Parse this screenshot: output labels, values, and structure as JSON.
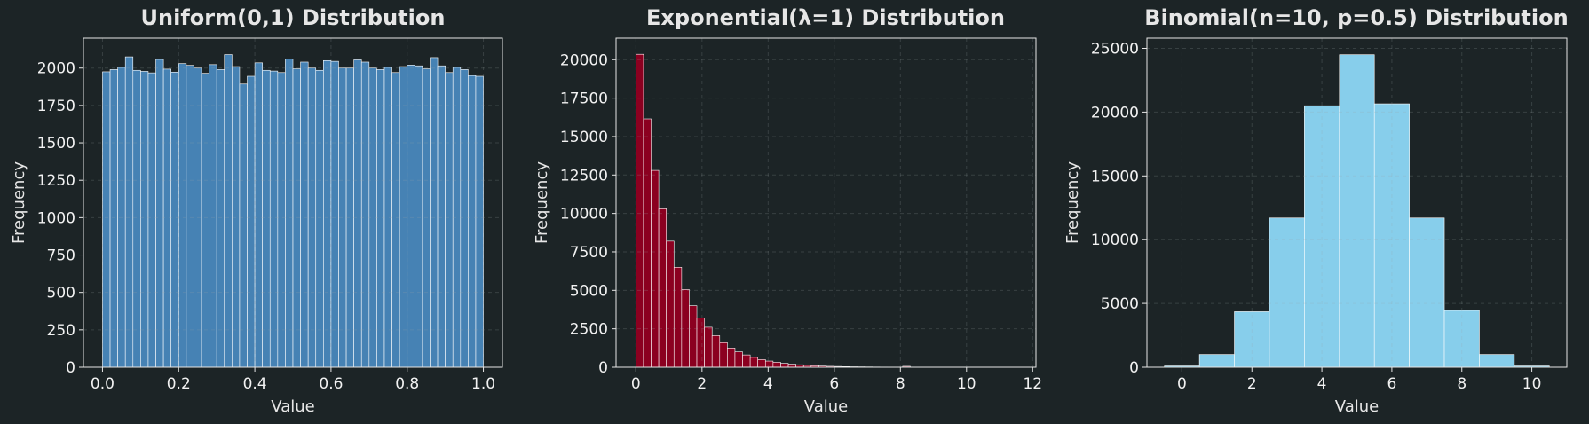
{
  "colors": {
    "background": "#1c2426",
    "axes_edge": "#e6e6e6",
    "text": "#e6e6e6",
    "bar_edge": "#ffffff"
  },
  "chart_data": [
    {
      "type": "bar",
      "title": "Uniform(0,1) Distribution",
      "xlabel": "Value",
      "ylabel": "Frequency",
      "xlim": [
        -0.05,
        1.05
      ],
      "ylim": [
        0,
        2200
      ],
      "xticks": [
        0.0,
        0.2,
        0.4,
        0.6,
        0.8,
        1.0
      ],
      "xtick_labels": [
        "0.0",
        "0.2",
        "0.4",
        "0.6",
        "0.8",
        "1.0"
      ],
      "yticks": [
        0,
        250,
        500,
        750,
        1000,
        1250,
        1500,
        1750,
        2000
      ],
      "ytick_labels": [
        "0",
        "250",
        "500",
        "750",
        "1000",
        "1250",
        "1500",
        "1750",
        "2000"
      ],
      "grid": true,
      "color": "#4682b4",
      "bin_edges_start": 0.0,
      "bin_width": 0.02,
      "values": [
        1975,
        1990,
        2005,
        2075,
        1985,
        1978,
        1968,
        2058,
        1993,
        1973,
        2030,
        2018,
        2000,
        1965,
        2023,
        1990,
        2090,
        2010,
        1893,
        1945,
        2035,
        1985,
        1980,
        1970,
        2060,
        1995,
        2040,
        2000,
        1985,
        2050,
        2045,
        2000,
        2000,
        2055,
        2040,
        2000,
        1990,
        2005,
        1970,
        2010,
        2020,
        2015,
        1995,
        2070,
        2015,
        1970,
        2005,
        1990,
        1950,
        1945
      ]
    },
    {
      "type": "bar",
      "title": "Exponential(λ=1) Distribution",
      "xlabel": "Value",
      "ylabel": "Frequency",
      "xlim": [
        -0.6,
        12.1
      ],
      "ylim": [
        0,
        21400
      ],
      "xticks": [
        0,
        2,
        4,
        6,
        8,
        10,
        12
      ],
      "xtick_labels": [
        "0",
        "2",
        "4",
        "6",
        "8",
        "10",
        "12"
      ],
      "yticks": [
        0,
        2500,
        5000,
        7500,
        10000,
        12500,
        15000,
        17500,
        20000
      ],
      "ytick_labels": [
        "0",
        "2500",
        "5000",
        "7500",
        "10000",
        "12500",
        "15000",
        "17500",
        "20000"
      ],
      "grid": true,
      "color": "#8b0020",
      "bin_edges_start": 0.0,
      "bin_width": 0.2305,
      "values": [
        20350,
        16150,
        12800,
        10300,
        8200,
        6500,
        5050,
        4000,
        3200,
        2600,
        2050,
        1600,
        1250,
        1000,
        800,
        640,
        500,
        400,
        320,
        250,
        200,
        160,
        120,
        100,
        80,
        60,
        50,
        40,
        30,
        25,
        20,
        15,
        12,
        10,
        5,
        60,
        5,
        3,
        2,
        2,
        2,
        2,
        2,
        1,
        1,
        1,
        1,
        1,
        1,
        1
      ]
    },
    {
      "type": "bar",
      "title": "Binomial(n=10, p=0.5) Distribution",
      "xlabel": "Value",
      "ylabel": "Frequency",
      "xlim": [
        -1.0,
        11.0
      ],
      "ylim": [
        0,
        25800
      ],
      "xticks": [
        0,
        2,
        4,
        6,
        8,
        10
      ],
      "xtick_labels": [
        "0",
        "2",
        "4",
        "6",
        "8",
        "10"
      ],
      "yticks": [
        0,
        5000,
        10000,
        15000,
        20000,
        25000
      ],
      "ytick_labels": [
        "0",
        "5000",
        "10000",
        "15000",
        "20000",
        "25000"
      ],
      "grid": true,
      "color": "#87ceeb",
      "categories": [
        0,
        1,
        2,
        3,
        4,
        5,
        6,
        7,
        8,
        9,
        10
      ],
      "values": [
        100,
        1000,
        4350,
        11700,
        20500,
        24500,
        20650,
        11700,
        4450,
        1000,
        100
      ]
    }
  ]
}
